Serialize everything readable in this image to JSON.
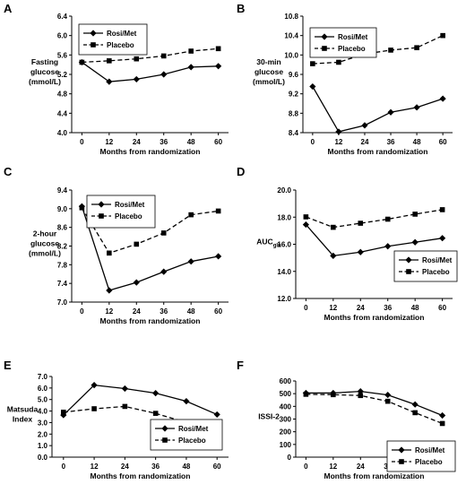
{
  "chart_data": [
    {
      "panel": "A",
      "type": "line",
      "x": [
        0,
        12,
        24,
        36,
        48,
        60
      ],
      "xlabel": "Months from randomization",
      "ylabel": [
        "Fasting",
        "glucose",
        "(mmol/L)"
      ],
      "ylim": [
        4.0,
        6.4
      ],
      "yticks": [
        "4.0",
        "4.4",
        "4.8",
        "5.2",
        "5.6",
        "6.0",
        "6.4"
      ],
      "legend_position": "top-left",
      "series": [
        {
          "name": "Rosi/Met",
          "marker": "diamond",
          "style": "solid",
          "values": [
            5.45,
            5.05,
            5.1,
            5.2,
            5.35,
            5.37
          ]
        },
        {
          "name": "Placebo",
          "marker": "square",
          "style": "dashed",
          "values": [
            5.45,
            5.48,
            5.52,
            5.58,
            5.68,
            5.73
          ]
        }
      ]
    },
    {
      "panel": "B",
      "type": "line",
      "x": [
        0,
        12,
        24,
        36,
        48,
        60
      ],
      "xlabel": "Months from randomization",
      "ylabel": [
        "30-min",
        "glucose",
        "(mmol/L)"
      ],
      "ylim": [
        8.4,
        10.8
      ],
      "yticks": [
        "8.4",
        "8.8",
        "9.2",
        "9.6",
        "10.0",
        "10.4",
        "10.8"
      ],
      "legend_position": "top-left",
      "series": [
        {
          "name": "Rosi/Met",
          "marker": "diamond",
          "style": "solid",
          "values": [
            9.35,
            8.42,
            8.55,
            8.82,
            8.92,
            9.1
          ]
        },
        {
          "name": "Placebo",
          "marker": "square",
          "style": "dashed",
          "values": [
            9.82,
            9.85,
            10.02,
            10.1,
            10.15,
            10.4
          ]
        }
      ]
    },
    {
      "panel": "C",
      "type": "line",
      "x": [
        0,
        12,
        24,
        36,
        48,
        60
      ],
      "xlabel": "Months from randomization",
      "ylabel": [
        "2-hour",
        "glucose",
        "(mmol/L)"
      ],
      "ylim": [
        7.0,
        9.4
      ],
      "yticks": [
        "7.0",
        "7.4",
        "7.8",
        "8.2",
        "8.6",
        "9.0",
        "9.4"
      ],
      "legend_position": "top-right",
      "series": [
        {
          "name": "Rosi/Met",
          "marker": "diamond",
          "style": "solid",
          "values": [
            9.05,
            7.25,
            7.42,
            7.65,
            7.87,
            7.98
          ]
        },
        {
          "name": "Placebo",
          "marker": "square",
          "style": "dashed",
          "values": [
            9.02,
            8.05,
            8.24,
            8.48,
            8.87,
            8.95
          ]
        }
      ]
    },
    {
      "panel": "D",
      "type": "line",
      "x": [
        0,
        12,
        24,
        36,
        48,
        60
      ],
      "xlabel": "Months from randomization",
      "ylabel": [
        "AUC"
      ],
      "ylabel_sub": "glu",
      "ylim": [
        12.0,
        20.0
      ],
      "yticks": [
        "12.0",
        "14.0",
        "16.0",
        "18.0",
        "20.0"
      ],
      "legend_position": "bottom-right",
      "series": [
        {
          "name": "Rosi/Met",
          "marker": "diamond",
          "style": "solid",
          "values": [
            17.45,
            15.15,
            15.42,
            15.85,
            16.15,
            16.45
          ]
        },
        {
          "name": "Placebo",
          "marker": "square",
          "style": "dashed",
          "values": [
            18.02,
            17.25,
            17.55,
            17.85,
            18.22,
            18.55
          ]
        }
      ]
    },
    {
      "panel": "E",
      "type": "line",
      "x": [
        0,
        12,
        24,
        36,
        48,
        60
      ],
      "xlabel": "Months from randomization",
      "ylabel": [
        "Matsuda",
        "Index"
      ],
      "ylim": [
        0.0,
        7.0
      ],
      "yticks": [
        "0.0",
        "1.0",
        "2.0",
        "3.0",
        "4.0",
        "5.0",
        "6.0",
        "7.0"
      ],
      "legend_position": "bottom-right",
      "series": [
        {
          "name": "Rosi/Met",
          "marker": "diamond",
          "style": "solid",
          "values": [
            3.65,
            6.25,
            5.95,
            5.55,
            4.85,
            3.7
          ]
        },
        {
          "name": "Placebo",
          "marker": "square",
          "style": "dashed",
          "values": [
            3.9,
            4.2,
            4.4,
            3.8,
            3.0,
            2.55
          ]
        }
      ]
    },
    {
      "panel": "F",
      "type": "line",
      "x": [
        0,
        12,
        24,
        36,
        48,
        60
      ],
      "xlabel": "Months from randomization",
      "ylabel": [
        "ISSI-2"
      ],
      "ylim": [
        0,
        600
      ],
      "yticks": [
        "0",
        "100",
        "200",
        "300",
        "400",
        "500",
        "600"
      ],
      "legend_position": "bottom-right",
      "series": [
        {
          "name": "Rosi/Met",
          "marker": "diamond",
          "style": "solid",
          "values": [
            505,
            505,
            518,
            490,
            415,
            328
          ]
        },
        {
          "name": "Placebo",
          "marker": "square",
          "style": "dashed",
          "values": [
            495,
            492,
            485,
            440,
            350,
            265
          ]
        }
      ]
    }
  ],
  "x_tick_labels": [
    "0",
    "12",
    "24",
    "36",
    "48",
    "60"
  ]
}
